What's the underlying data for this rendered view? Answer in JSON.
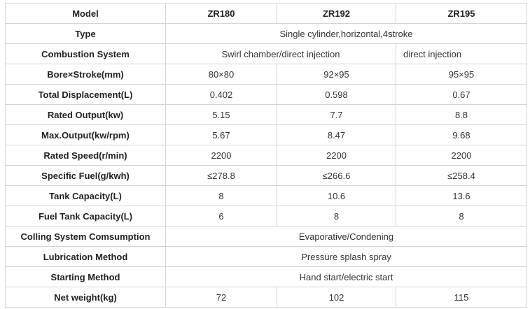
{
  "table": {
    "header": [
      "Model",
      "ZR180",
      "ZR192",
      "ZR195"
    ],
    "rows": [
      [
        "Type",
        "Single cylinder,horizontal,4stroke"
      ],
      [
        "Combustion System",
        "Swirl chamber/direct injection",
        "direct injection"
      ],
      [
        "Bore×Stroke(mm)",
        "80×80",
        "92×95",
        "95×95"
      ],
      [
        "Total Displacement(L)",
        "0.402",
        "0.598",
        "0.67"
      ],
      [
        "Rated Output(kw)",
        "5.15",
        "7.7",
        "8.8"
      ],
      [
        "Max.Output(kw/rpm)",
        "5.67",
        "8.47",
        "9.68"
      ],
      [
        "Rated Speed(r/min)",
        "2200",
        "2200",
        "2200"
      ],
      [
        "Specific Fuel(g/kwh)",
        "≤278.8",
        "≤266.6",
        "≤258.4"
      ],
      [
        "Tank Capacity(L)",
        "8",
        "10.6",
        "13.6"
      ],
      [
        "Fuel Tank Capacity(L)",
        "6",
        "8",
        "8"
      ],
      [
        "Colling System Comsumption",
        "Evaporative/Condening"
      ],
      [
        "Lubrication Method",
        "Pressure splash spray"
      ],
      [
        "Starting Method",
        "Hand start/electric start"
      ],
      [
        "Net weight(kg)",
        "72",
        "102",
        "115"
      ]
    ]
  }
}
